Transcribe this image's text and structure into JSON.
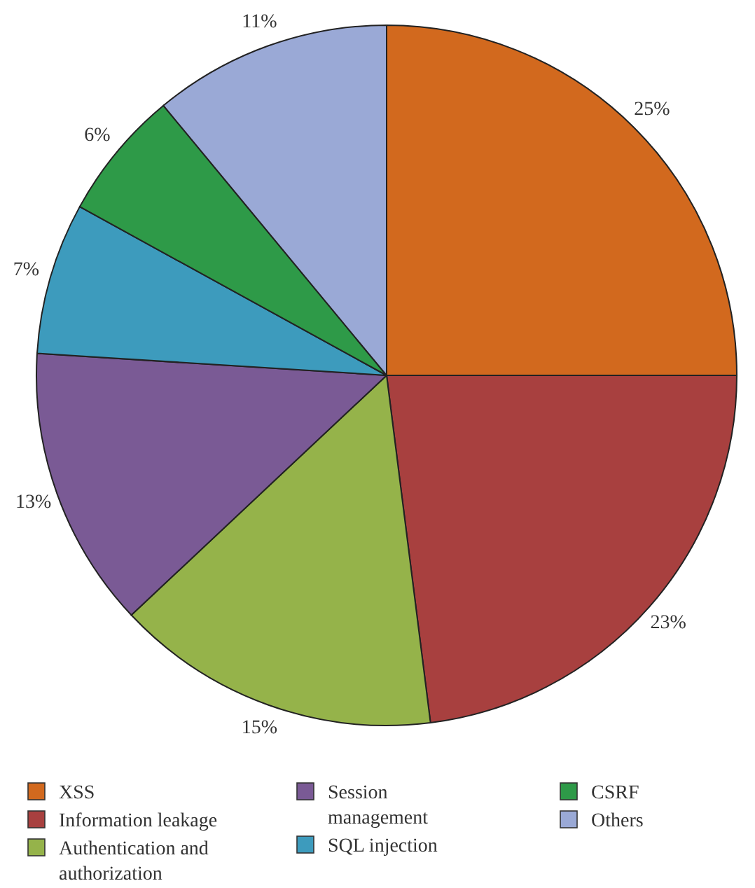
{
  "chart_data": {
    "type": "pie",
    "categories": [
      "XSS",
      "Information leakage",
      "Authentication and authorization",
      "Session management",
      "SQL injection",
      "CSRF",
      "Others"
    ],
    "values": [
      25,
      23,
      15,
      13,
      7,
      6,
      11
    ],
    "value_labels": [
      "25%",
      "23%",
      "15%",
      "13%",
      "7%",
      "6%",
      "11%"
    ],
    "colors": [
      "#d2691e",
      "#a8403f",
      "#95b34a",
      "#7a5a95",
      "#3d9bbd",
      "#2e9a48",
      "#9aa9d6"
    ],
    "legend": "bottom"
  }
}
